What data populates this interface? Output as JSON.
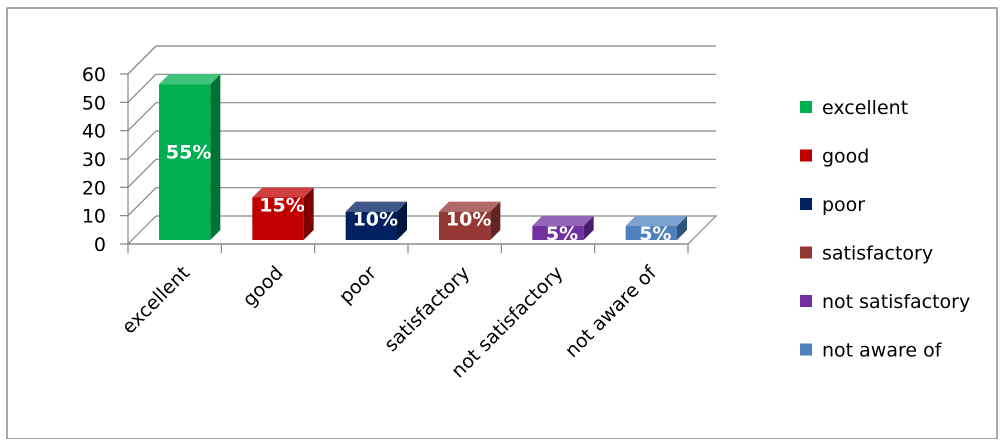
{
  "chart_data": {
    "type": "bar",
    "categories": [
      "excellent",
      "good",
      "poor",
      "satisfactory",
      "not satisfactory",
      "not aware of"
    ],
    "values": [
      55,
      15,
      10,
      10,
      5,
      5
    ],
    "data_labels": [
      "55%",
      "15%",
      "10%",
      "10%",
      "5%",
      "5%"
    ],
    "colors": [
      "#00b050",
      "#c00000",
      "#002060",
      "#953735",
      "#7030a0",
      "#4f81bd"
    ],
    "ylim": [
      0,
      60
    ],
    "yticks": [
      "0",
      "10",
      "20",
      "30",
      "40",
      "50",
      "60"
    ],
    "grid": true,
    "legend_position": "right",
    "legend": [
      "excellent",
      "good",
      "poor",
      "satisfactory",
      "not satisfactory",
      "not aware of"
    ],
    "style": "3d-column"
  }
}
